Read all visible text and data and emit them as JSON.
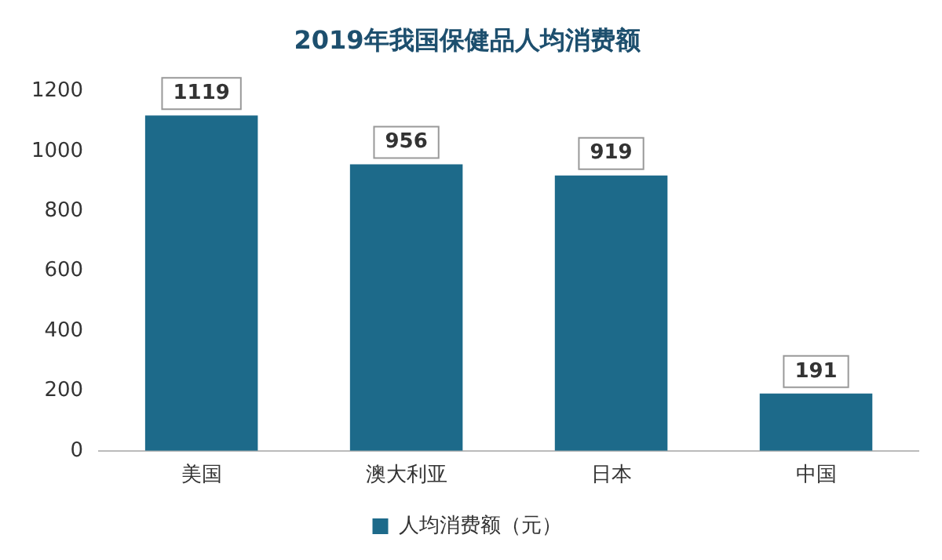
{
  "chart_data": {
    "type": "bar",
    "title": "2019年我国保健品人均消费额",
    "categories": [
      "美国",
      "澳大利亚",
      "日本",
      "中国"
    ],
    "series": [
      {
        "name": "人均消费额（元）",
        "color": "#1d6a8a",
        "values": [
          1119,
          956,
          919,
          191
        ]
      }
    ],
    "ylim": [
      0,
      1200
    ],
    "yticks": [
      0,
      200,
      400,
      600,
      800,
      1000,
      1200
    ],
    "grid": false,
    "legend": "bottom",
    "data_labels": true
  }
}
